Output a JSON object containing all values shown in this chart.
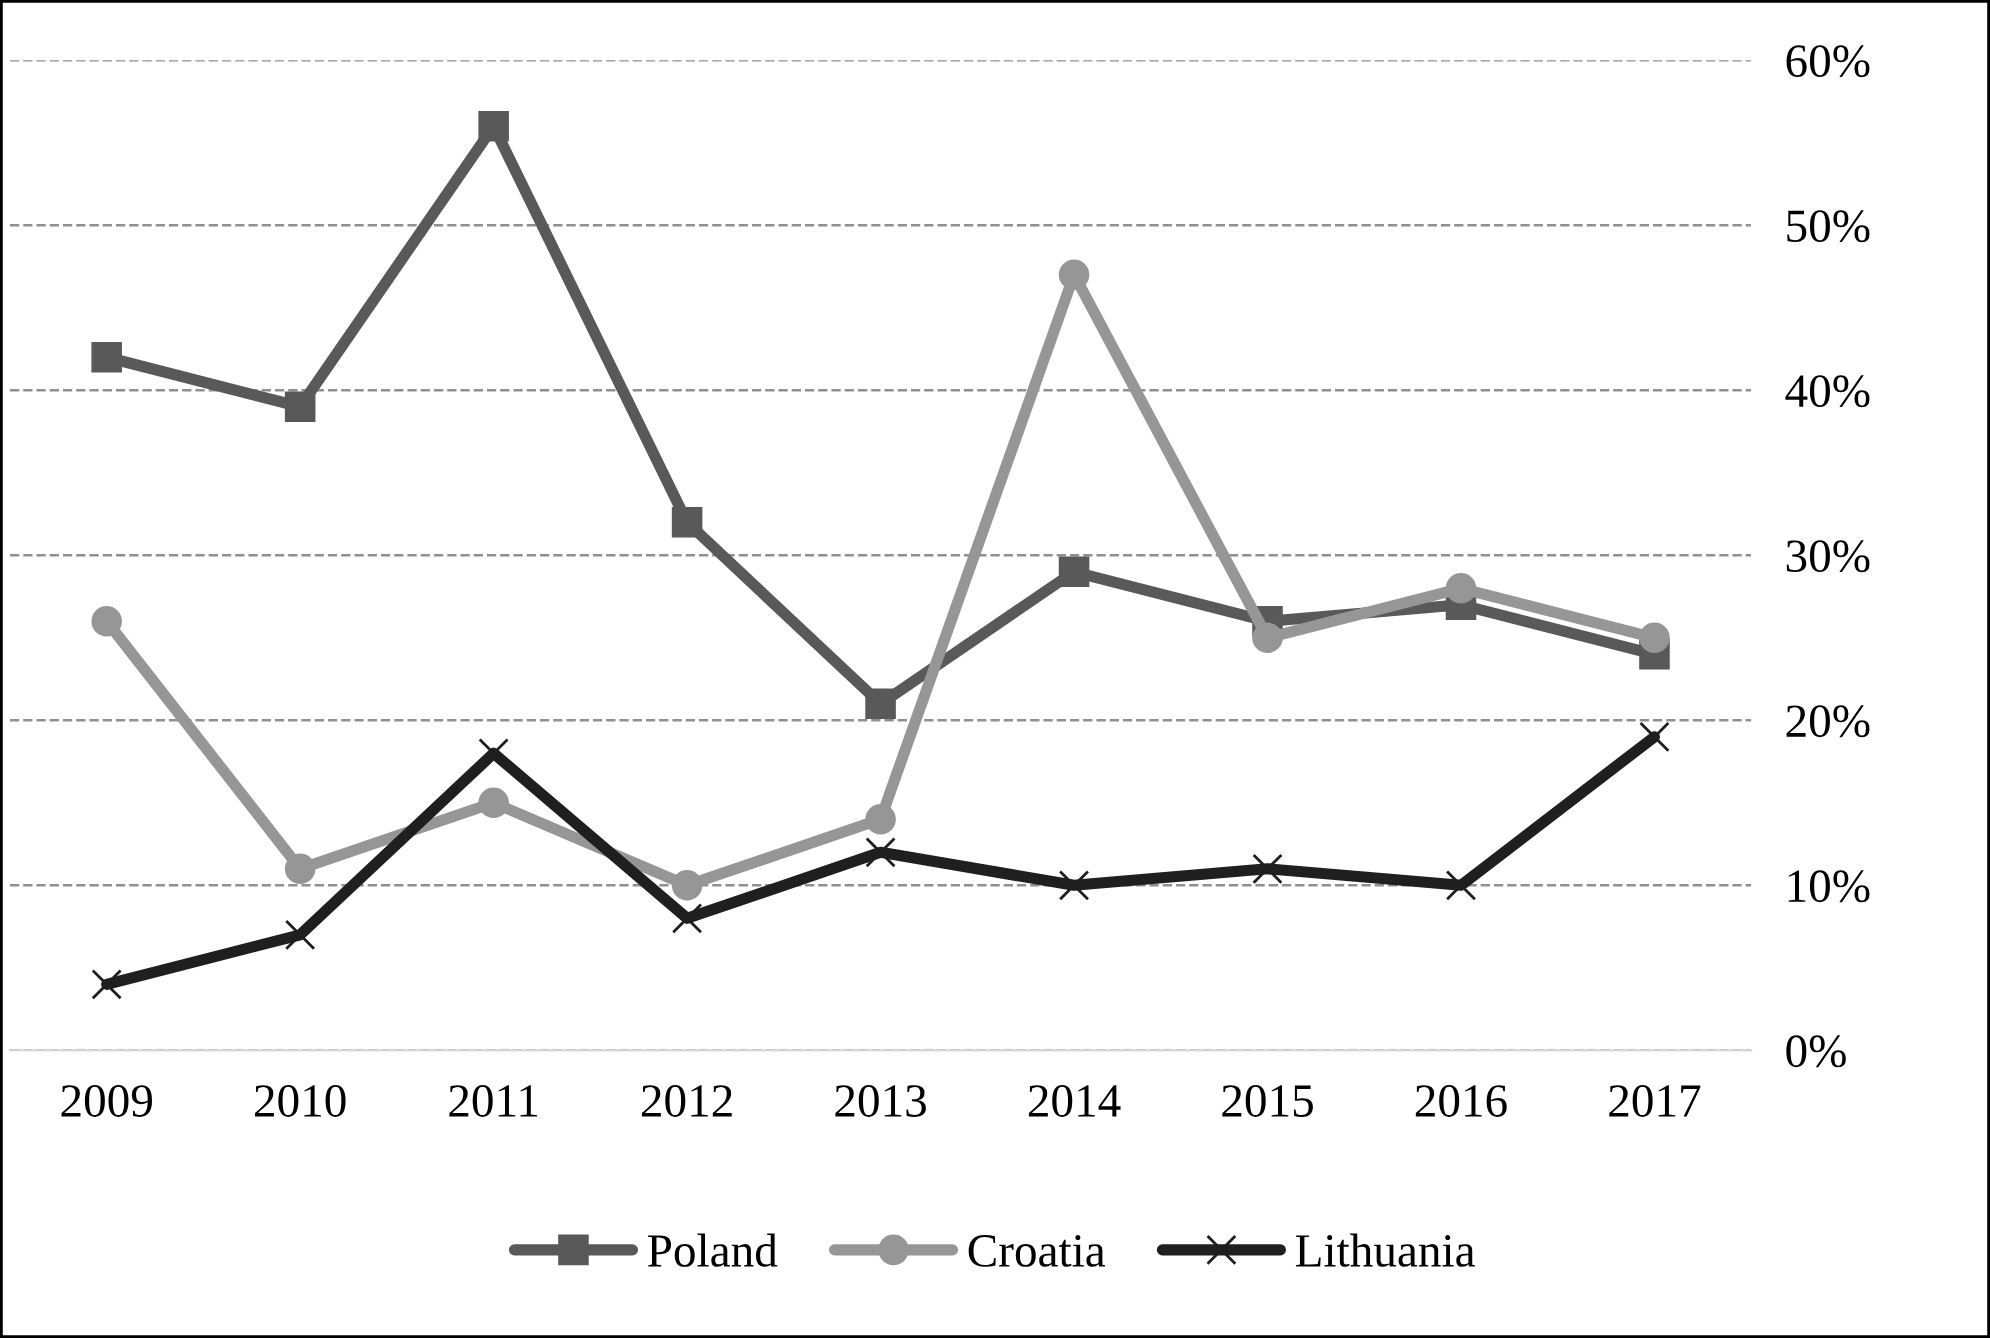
{
  "chart_data": {
    "type": "line",
    "categories": [
      "2009",
      "2010",
      "2011",
      "2012",
      "2013",
      "2014",
      "2015",
      "2016",
      "2017"
    ],
    "series": [
      {
        "name": "Poland",
        "color": "#595959",
        "marker": "square",
        "values": [
          42,
          39,
          56,
          32,
          21,
          29,
          26,
          27,
          24
        ]
      },
      {
        "name": "Croatia",
        "color": "#969696",
        "marker": "circle",
        "values": [
          26,
          11,
          15,
          10,
          14,
          47,
          25,
          28,
          25
        ]
      },
      {
        "name": "Lithuania",
        "color": "#1f1f1f",
        "marker": "cross",
        "values": [
          4,
          7,
          18,
          8,
          12,
          10,
          11,
          10,
          19
        ]
      }
    ],
    "ylim": [
      0,
      60
    ],
    "yticks": [
      {
        "value": 0,
        "label": "0%"
      },
      {
        "value": 10,
        "label": "10%"
      },
      {
        "value": 20,
        "label": "20%"
      },
      {
        "value": 30,
        "label": "30%"
      },
      {
        "value": 40,
        "label": "40%"
      },
      {
        "value": 50,
        "label": "50%"
      },
      {
        "value": 60,
        "label": "60%"
      }
    ],
    "grid": "y",
    "legend": "bottom",
    "line_style": "solid"
  }
}
